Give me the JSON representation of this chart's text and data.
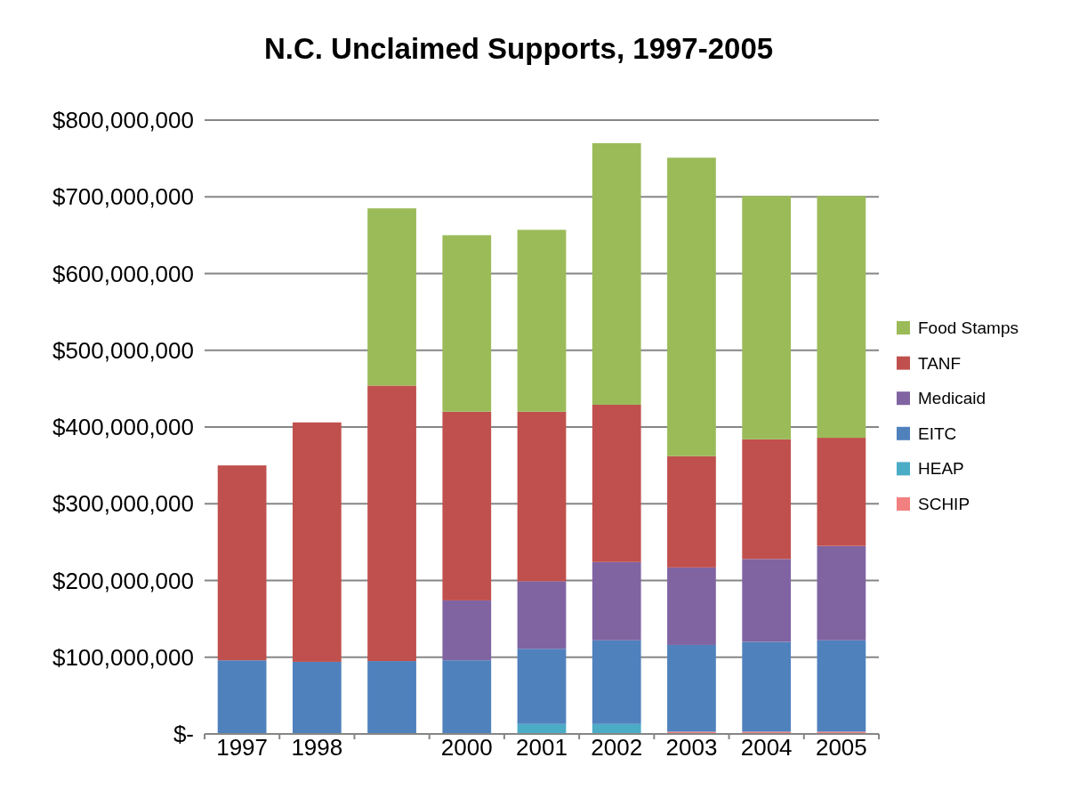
{
  "chart_data": {
    "type": "bar",
    "title": "N.C. Unclaimed Supports, 1997-2005",
    "stacked": true,
    "categories": [
      "1997",
      "1998",
      null,
      "2000",
      "2001",
      "2002",
      "2003",
      "2004",
      "2005"
    ],
    "series": [
      {
        "name": "SCHIP",
        "color": "#f28080",
        "values": [
          0,
          0,
          0,
          1000000,
          1000000,
          1000000,
          3000000,
          3000000,
          3000000
        ]
      },
      {
        "name": "HEAP",
        "color": "#4bacc6",
        "values": [
          0,
          0,
          0,
          0,
          12000000,
          12000000,
          0,
          0,
          0
        ]
      },
      {
        "name": "EITC",
        "color": "#4f81bd",
        "values": [
          96000000,
          94000000,
          95000000,
          95000000,
          98000000,
          109000000,
          113000000,
          117000000,
          119000000
        ]
      },
      {
        "name": "Medicaid",
        "color": "#8064a2",
        "values": [
          0,
          0,
          0,
          78000000,
          88000000,
          102000000,
          101000000,
          108000000,
          123000000
        ]
      },
      {
        "name": "TANF",
        "color": "#c0504d",
        "values": [
          254000000,
          312000000,
          359000000,
          246000000,
          221000000,
          205000000,
          145000000,
          156000000,
          141000000
        ]
      },
      {
        "name": "Food Stamps",
        "color": "#9bbb59",
        "values": [
          0,
          0,
          231000000,
          230000000,
          237000000,
          341000000,
          389000000,
          317000000,
          315000000
        ]
      }
    ],
    "ylim": [
      0,
      800000000
    ],
    "yticks": [
      {
        "value": 0,
        "label": "$-"
      },
      {
        "value": 100000000,
        "label": "$100,000,000"
      },
      {
        "value": 200000000,
        "label": "$200,000,000"
      },
      {
        "value": 300000000,
        "label": "$300,000,000"
      },
      {
        "value": 400000000,
        "label": "$400,000,000"
      },
      {
        "value": 500000000,
        "label": "$500,000,000"
      },
      {
        "value": 600000000,
        "label": "$600,000,000"
      },
      {
        "value": 700000000,
        "label": "$700,000,000"
      },
      {
        "value": 800000000,
        "label": "$800,000,000"
      }
    ],
    "grid": "y",
    "legend": "right"
  }
}
